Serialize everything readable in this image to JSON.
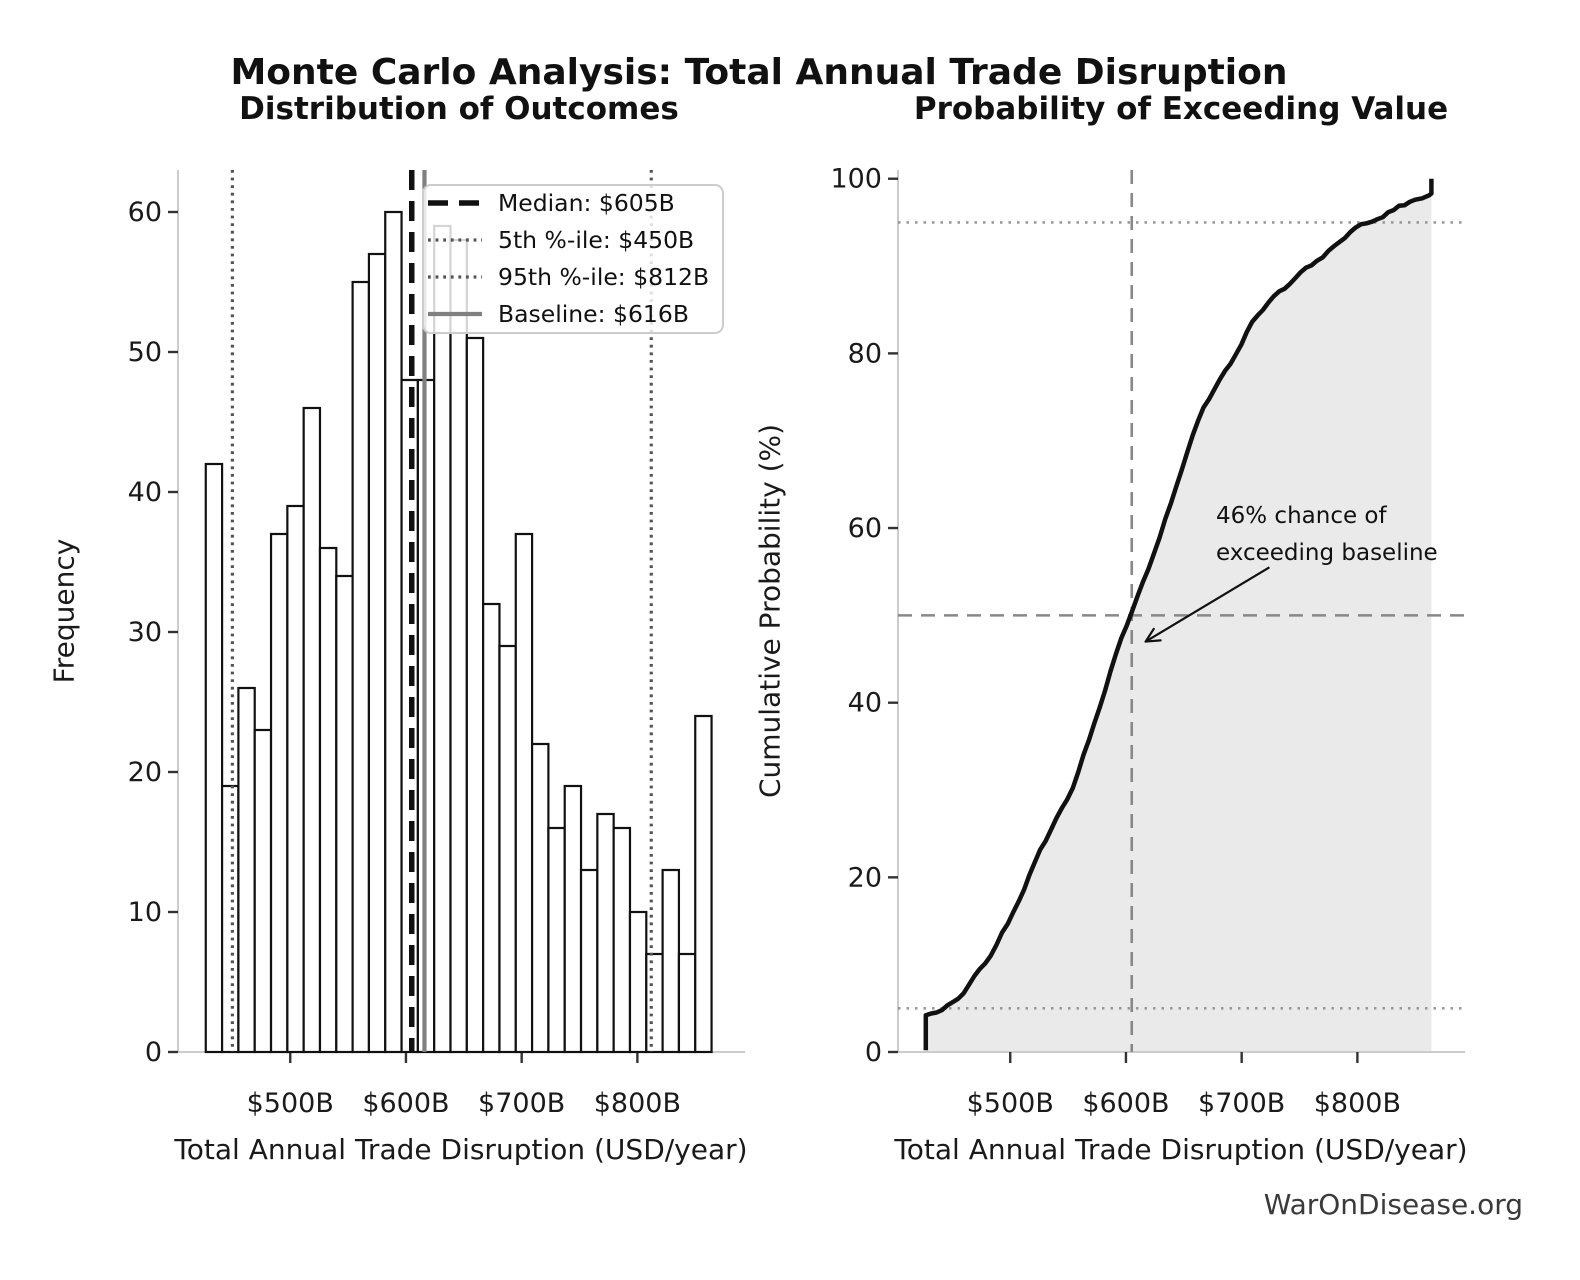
{
  "figure": {
    "title": "Monte Carlo Analysis: Total Annual Trade Disruption",
    "watermark": "WarOnDisease.org",
    "background": "#ffffff"
  },
  "colors": {
    "bar_fill": "#ffffff",
    "bar_edge": "#111111",
    "median_line": "#111111",
    "percentile_line": "#555555",
    "baseline_line": "#808080",
    "cdf_curve": "#111111",
    "fill_under_curve": "#e8e8e8",
    "dashed_reference": "#888888",
    "dotted_reference": "#999999",
    "spine": "#cccccc",
    "tick_mark": "#333333",
    "text": "#1a1a1a",
    "legend_border": "#cccccc"
  },
  "chart_data": [
    {
      "type": "bar",
      "panel": "left",
      "title": "Distribution of Outcomes",
      "xlabel": "Total Annual Trade Disruption (USD/year)",
      "ylabel": "Frequency",
      "bin_start": 427,
      "bin_width": 14.1,
      "values": [
        42,
        19,
        26,
        23,
        37,
        39,
        46,
        36,
        34,
        55,
        57,
        60,
        48,
        48,
        59,
        58,
        51,
        32,
        29,
        37,
        22,
        16,
        19,
        13,
        17,
        16,
        10,
        7,
        13,
        7,
        24
      ],
      "xlim": [
        403,
        893
      ],
      "ylim": [
        0,
        63
      ],
      "xticks": [
        {
          "value": 500,
          "label": "$500B"
        },
        {
          "value": 600,
          "label": "$600B"
        },
        {
          "value": 700,
          "label": "$700B"
        },
        {
          "value": 800,
          "label": "$800B"
        }
      ],
      "yticks": [
        0,
        10,
        20,
        30,
        40,
        50,
        60
      ],
      "markers": [
        {
          "name": "median",
          "value": 605,
          "label": "Median: $605B",
          "style": "dashed-black"
        },
        {
          "name": "p5",
          "value": 450,
          "label": "5th %-ile: $450B",
          "style": "dotted-gray"
        },
        {
          "name": "p95",
          "value": 812,
          "label": "95th %-ile: $812B",
          "style": "dotted-gray"
        },
        {
          "name": "baseline",
          "value": 616,
          "label": "Baseline: $616B",
          "style": "solid-gray"
        }
      ],
      "legend_position": "upper right",
      "grid": false
    },
    {
      "type": "line",
      "panel": "right",
      "title": "Probability of Exceeding Value",
      "xlabel": "Total Annual Trade Disruption (USD/year)",
      "ylabel": "Cumulative Probability (%)",
      "xlim": [
        403,
        893
      ],
      "ylim": [
        0,
        101
      ],
      "xticks": [
        {
          "value": 500,
          "label": "$500B"
        },
        {
          "value": 600,
          "label": "$600B"
        },
        {
          "value": 700,
          "label": "$700B"
        },
        {
          "value": 800,
          "label": "$800B"
        }
      ],
      "yticks": [
        0,
        20,
        40,
        60,
        80,
        100
      ],
      "cdf_points": [
        [
          427,
          0.2
        ],
        [
          427,
          4.2
        ],
        [
          441,
          4.8
        ],
        [
          455,
          6.1
        ],
        [
          469,
          8.7
        ],
        [
          483,
          11.0
        ],
        [
          498,
          14.7
        ],
        [
          512,
          18.6
        ],
        [
          526,
          23.2
        ],
        [
          540,
          26.8
        ],
        [
          554,
          30.2
        ],
        [
          568,
          35.7
        ],
        [
          582,
          41.4
        ],
        [
          596,
          47.4
        ],
        [
          610,
          52.2
        ],
        [
          624,
          57.0
        ],
        [
          639,
          62.9
        ],
        [
          653,
          68.7
        ],
        [
          667,
          73.8
        ],
        [
          681,
          77.0
        ],
        [
          695,
          79.9
        ],
        [
          709,
          83.6
        ],
        [
          723,
          85.8
        ],
        [
          737,
          87.4
        ],
        [
          751,
          89.3
        ],
        [
          765,
          90.6
        ],
        [
          780,
          92.3
        ],
        [
          794,
          93.9
        ],
        [
          808,
          94.9
        ],
        [
          822,
          95.6
        ],
        [
          836,
          96.9
        ],
        [
          850,
          97.6
        ],
        [
          862,
          98.1
        ],
        [
          864,
          98.3
        ],
        [
          864,
          100
        ]
      ],
      "reference_lines": {
        "horizontal_dashed": 50,
        "horizontal_dotted": [
          5,
          95
        ],
        "vertical_dashed": 605
      },
      "annotation": {
        "line1": "46% chance of",
        "line2": "exceeding baseline",
        "arrow_from": [
          724,
          55.5
        ],
        "arrow_to": [
          617,
          47
        ]
      },
      "grid": false
    }
  ]
}
